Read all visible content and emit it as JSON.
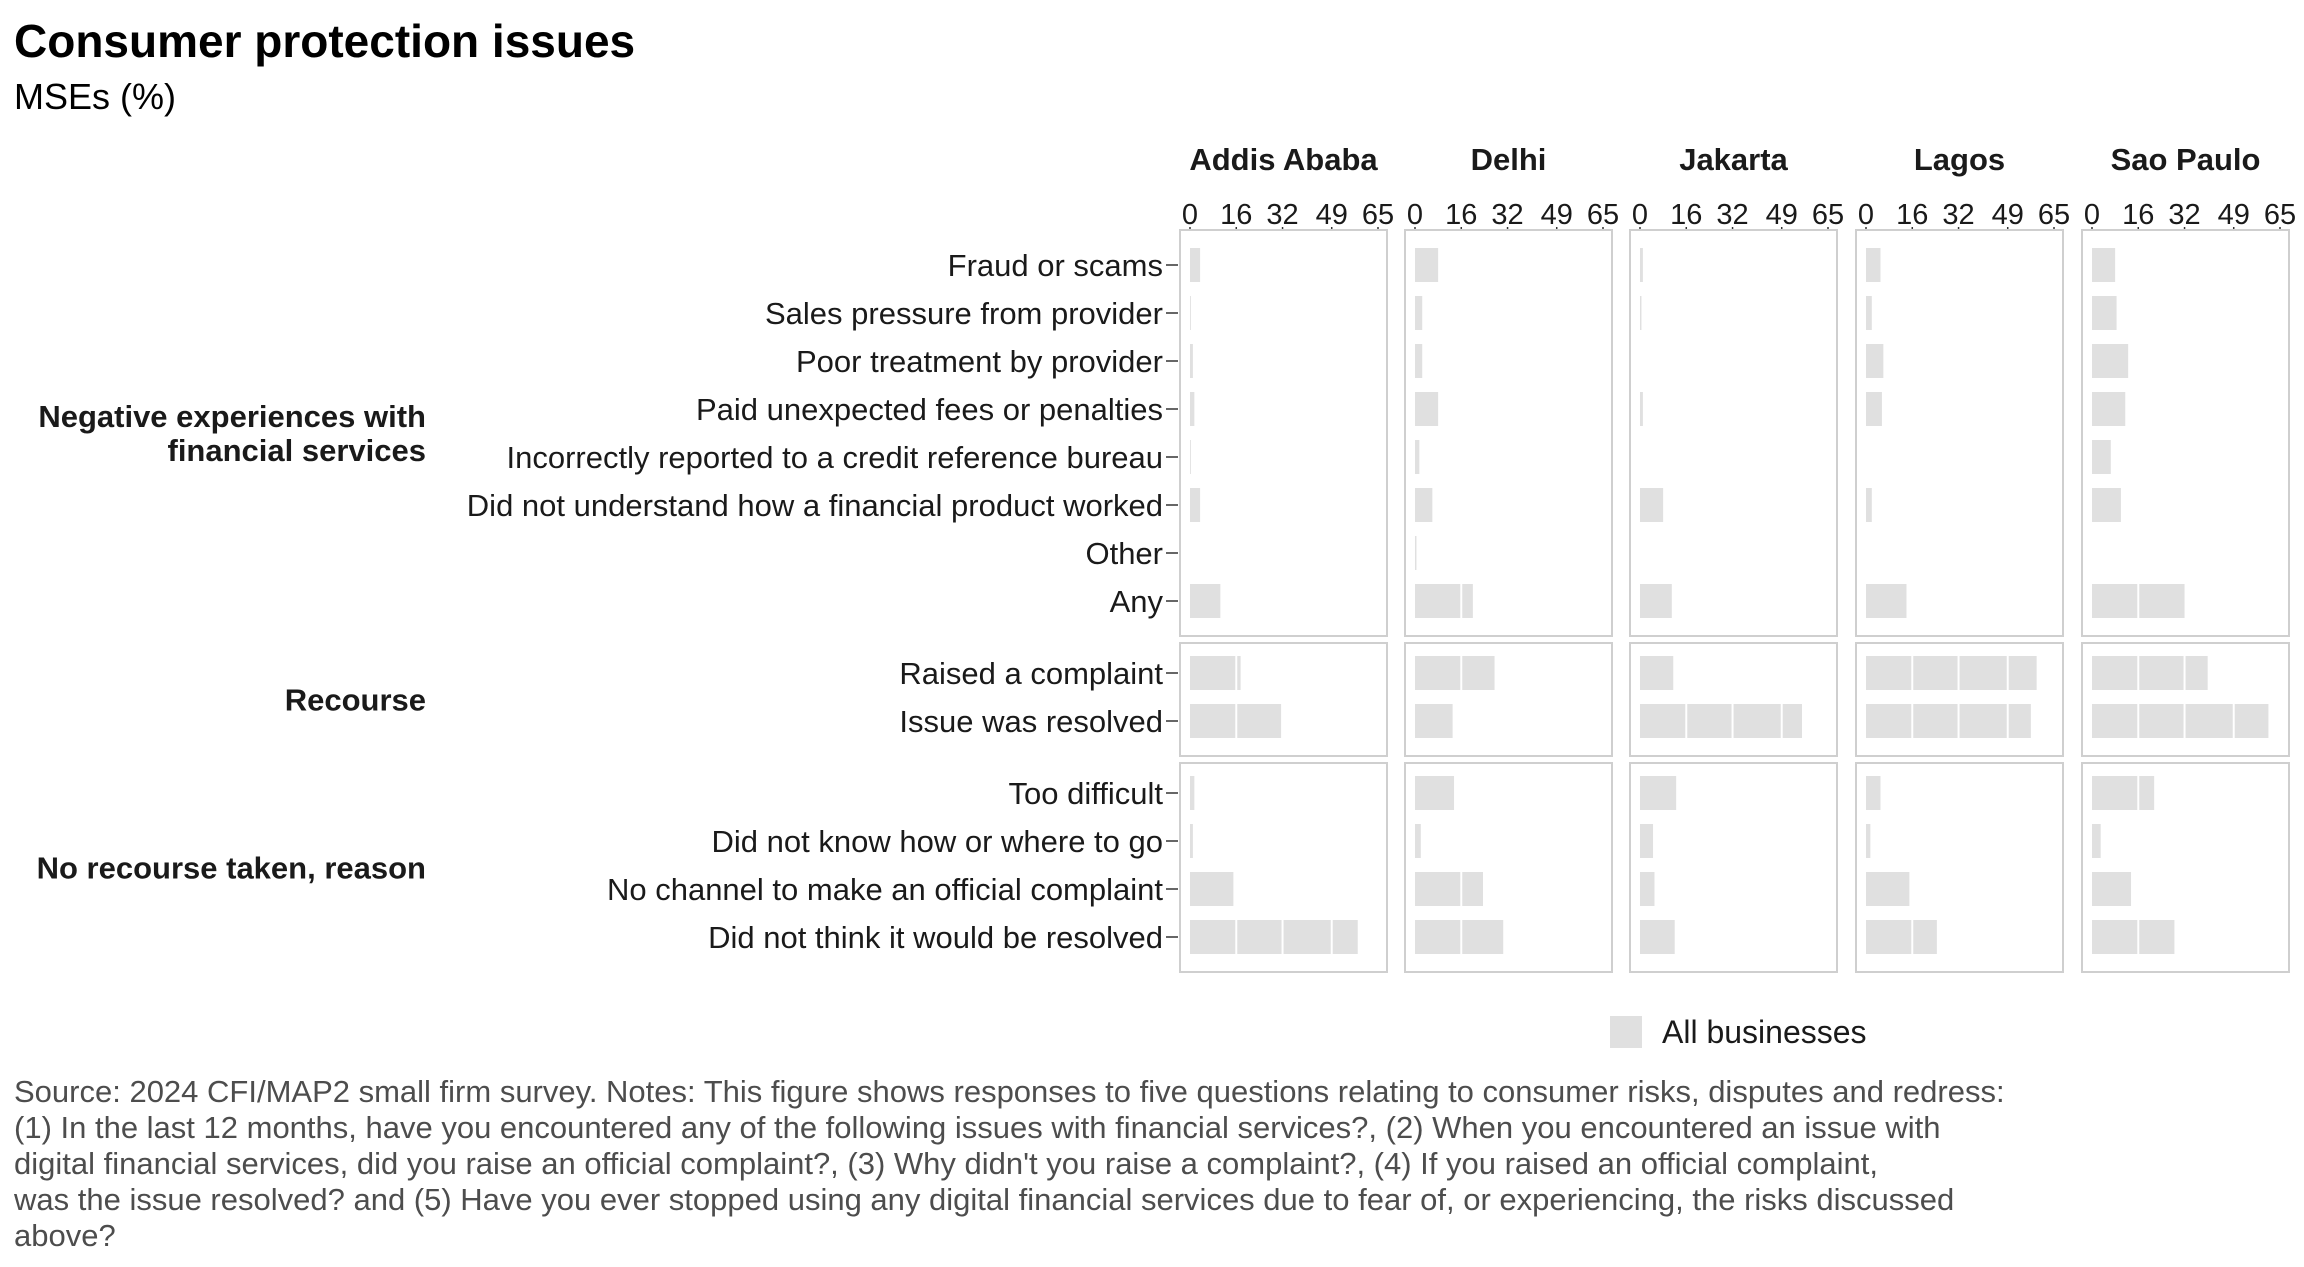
{
  "title": "Consumer protection issues",
  "subtitle": "MSEs (%)",
  "legend": {
    "label": "All businesses",
    "color": "#e0e0e0"
  },
  "caption": [
    "Source: 2024 CFI/MAP2 small firm survey. Notes: This figure shows responses to five questions relating to consumer risks, disputes and redress:",
    "(1) In the last 12 months, have you encountered any of the following issues with financial services?, (2) When you encountered an issue with",
    "digital financial services, did you raise an official complaint?, (3) Why didn't you raise a complaint?, (4) If you raised an official complaint,",
    "was the issue resolved? and (5) Have you ever stopped using any digital financial services due to fear of, or experiencing, the risks discussed",
    "above?"
  ],
  "chart_data": {
    "type": "bar",
    "orientation": "horizontal",
    "facets": [
      "Addis Ababa",
      "Delhi",
      "Jakarta",
      "Lagos",
      "Sao Paulo"
    ],
    "x_ticks": [
      0,
      16,
      32,
      49,
      65
    ],
    "xlim": [
      0,
      65
    ],
    "grid": false,
    "legend_position": "bottom",
    "groups": [
      {
        "name": "Negative experiences with financial services",
        "categories": [
          "Fraud or scams",
          "Sales pressure from provider",
          "Poor treatment by provider",
          "Paid unexpected fees or penalties",
          "Incorrectly reported to a credit reference bureau",
          "Did not understand how a financial product worked",
          "Other",
          "Any"
        ],
        "values": {
          "Addis Ababa": [
            3.5,
            0.3,
            1.0,
            1.5,
            0.3,
            3.5,
            0.0,
            10.5
          ],
          "Delhi": [
            8.0,
            2.5,
            2.5,
            8.0,
            1.5,
            6.0,
            0.5,
            20.0
          ],
          "Jakarta": [
            1.0,
            0.5,
            0.0,
            1.0,
            0.0,
            8.0,
            0.0,
            11.0
          ],
          "Lagos": [
            5.0,
            2.0,
            6.0,
            5.5,
            0.0,
            2.0,
            0.0,
            14.0
          ],
          "Sao Paulo": [
            8.0,
            8.5,
            12.5,
            11.5,
            6.5,
            10.0,
            0.0,
            32.0
          ]
        }
      },
      {
        "name": "Recourse",
        "categories": [
          "Raised a complaint",
          "Issue was resolved"
        ],
        "values": {
          "Addis Ababa": [
            17.5,
            31.5
          ],
          "Delhi": [
            27.5,
            13.0
          ],
          "Jakarta": [
            11.5,
            56.0
          ],
          "Lagos": [
            59.0,
            57.0
          ],
          "Sao Paulo": [
            40.0,
            61.0
          ]
        }
      },
      {
        "name": "No recourse taken, reason",
        "categories": [
          "Too difficult",
          "Did not know how or where to go",
          "No channel to make an official complaint",
          "Did not think it would be resolved"
        ],
        "values": {
          "Addis Ababa": [
            1.5,
            1.0,
            15.0,
            58.0
          ],
          "Delhi": [
            13.5,
            2.0,
            23.5,
            30.5
          ],
          "Jakarta": [
            12.5,
            4.5,
            5.0,
            12.0
          ],
          "Lagos": [
            5.0,
            1.5,
            15.0,
            24.5
          ],
          "Sao Paulo": [
            21.5,
            3.0,
            13.5,
            28.5
          ]
        }
      }
    ]
  }
}
